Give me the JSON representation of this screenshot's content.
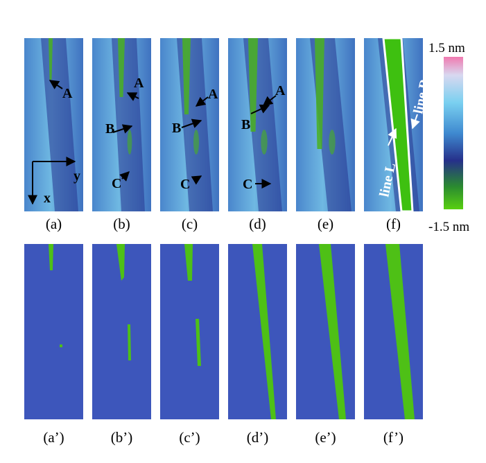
{
  "top_panels": [
    {
      "label": "(a)",
      "annotations": [
        "A"
      ]
    },
    {
      "label": "(b)",
      "annotations": [
        "A",
        "B",
        "C"
      ]
    },
    {
      "label": "(c)",
      "annotations": [
        "A",
        "B",
        "C"
      ]
    },
    {
      "label": "(d)",
      "annotations": [
        "A",
        "B",
        "C"
      ]
    },
    {
      "label": "(e)",
      "annotations": []
    },
    {
      "label": "(f)",
      "annotations": [
        "line L",
        "line R"
      ]
    }
  ],
  "axes": {
    "x": "x",
    "y": "y"
  },
  "colorbar": {
    "max_label": "1.5 nm",
    "min_label": "-1.5 nm"
  },
  "bottom_panels": [
    {
      "label": "(a’)"
    },
    {
      "label": "(b’)"
    },
    {
      "label": "(c’)"
    },
    {
      "label": "(d’)"
    },
    {
      "label": "(e’)"
    },
    {
      "label": "(f’)"
    }
  ]
}
